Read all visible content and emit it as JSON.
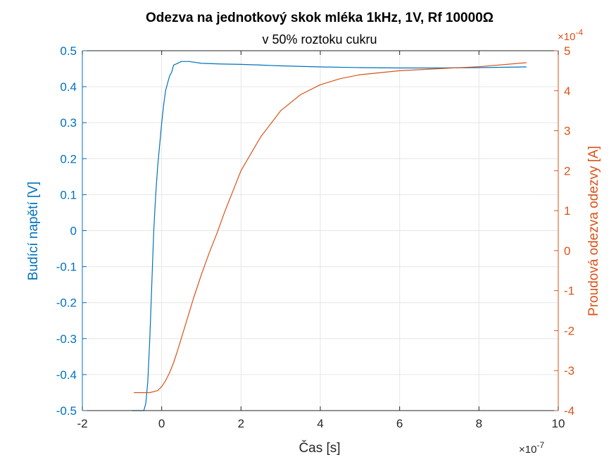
{
  "chart_data": {
    "type": "line",
    "title": "Odezva na jednotkový skok mléka 1kHz, 1V, Rf 10000Ω",
    "subtitle": "v 50% roztoku cukru",
    "xlabel": "Čas [s]",
    "x_exponent": "×10",
    "x_exponent_power": "-7",
    "xlim": [
      -2e-07,
      1e-06
    ],
    "xticks": [
      -2e-07,
      0,
      2e-07,
      4e-07,
      6e-07,
      8e-07,
      1e-06
    ],
    "xtick_labels": [
      "-2",
      "0",
      "2",
      "4",
      "6",
      "8",
      "10"
    ],
    "grid": true,
    "colors": {
      "left": "#0072BD",
      "right": "#D95319",
      "grid": "#e6e6e6"
    },
    "left_axis": {
      "label": "Budící napětí [V]",
      "ylim": [
        -0.5,
        0.5
      ],
      "ticks": [
        -0.5,
        -0.4,
        -0.3,
        -0.2,
        -0.1,
        0,
        0.1,
        0.2,
        0.3,
        0.4,
        0.5
      ],
      "tick_labels": [
        "-0.5",
        "-0.4",
        "-0.3",
        "-0.2",
        "-0.1",
        "0",
        "0.1",
        "0.2",
        "0.3",
        "0.4",
        "0.5"
      ]
    },
    "right_axis": {
      "label": "Proudová odezva odezvy [A]",
      "ylim": [
        -0.0004,
        0.0005
      ],
      "ticks": [
        -0.0004,
        -0.0003,
        -0.0002,
        -0.0001,
        0,
        0.0001,
        0.0002,
        0.0003,
        0.0004,
        0.0005
      ],
      "tick_labels": [
        "-4",
        "-3",
        "-2",
        "-1",
        "0",
        "1",
        "2",
        "3",
        "4",
        "5"
      ],
      "exponent": "×10",
      "exponent_power": "-4"
    },
    "series": [
      {
        "axis": "left",
        "color": "#0072BD",
        "x": [
          -7.5e-08,
          -4.5e-08,
          -4e-08,
          -3.5e-08,
          -3e-08,
          -2.5e-08,
          -2e-08,
          -1.5e-08,
          -1e-08,
          -5e-09,
          0,
          5e-09,
          1e-08,
          1.5e-08,
          2e-08,
          2.5e-08,
          3e-08,
          4e-08,
          5e-08,
          7e-08,
          1e-07,
          1.5e-07,
          2e-07,
          2.5e-07,
          3e-07,
          4e-07,
          5e-07,
          6e-07,
          7e-07,
          8e-07,
          9.2e-07
        ],
        "y": [
          -0.5,
          -0.5,
          -0.48,
          -0.42,
          -0.3,
          -0.15,
          0.0,
          0.1,
          0.18,
          0.24,
          0.3,
          0.35,
          0.39,
          0.41,
          0.43,
          0.44,
          0.46,
          0.465,
          0.47,
          0.47,
          0.465,
          0.463,
          0.462,
          0.46,
          0.458,
          0.455,
          0.453,
          0.452,
          0.452,
          0.453,
          0.455
        ]
      },
      {
        "axis": "right",
        "color": "#D95319",
        "x": [
          -7e-08,
          -5e-08,
          -3e-08,
          -1e-08,
          0,
          1e-08,
          2e-08,
          3e-08,
          4e-08,
          6e-08,
          8e-08,
          1e-07,
          1.2e-07,
          1.4e-07,
          1.6e-07,
          1.8e-07,
          2e-07,
          2.5e-07,
          3e-07,
          3.5e-07,
          4e-07,
          4.5e-07,
          5e-07,
          6e-07,
          7e-07,
          8e-07,
          9.2e-07
        ],
        "y": [
          -0.000355,
          -0.000355,
          -0.000355,
          -0.00035,
          -0.00034,
          -0.000325,
          -0.000305,
          -0.00028,
          -0.00025,
          -0.000185,
          -0.00012,
          -6e-05,
          -5e-06,
          4.5e-05,
          0.0001,
          0.00015,
          0.0002,
          0.000285,
          0.00035,
          0.00039,
          0.000415,
          0.00043,
          0.00044,
          0.00045,
          0.000455,
          0.00046,
          0.00047
        ]
      }
    ]
  }
}
